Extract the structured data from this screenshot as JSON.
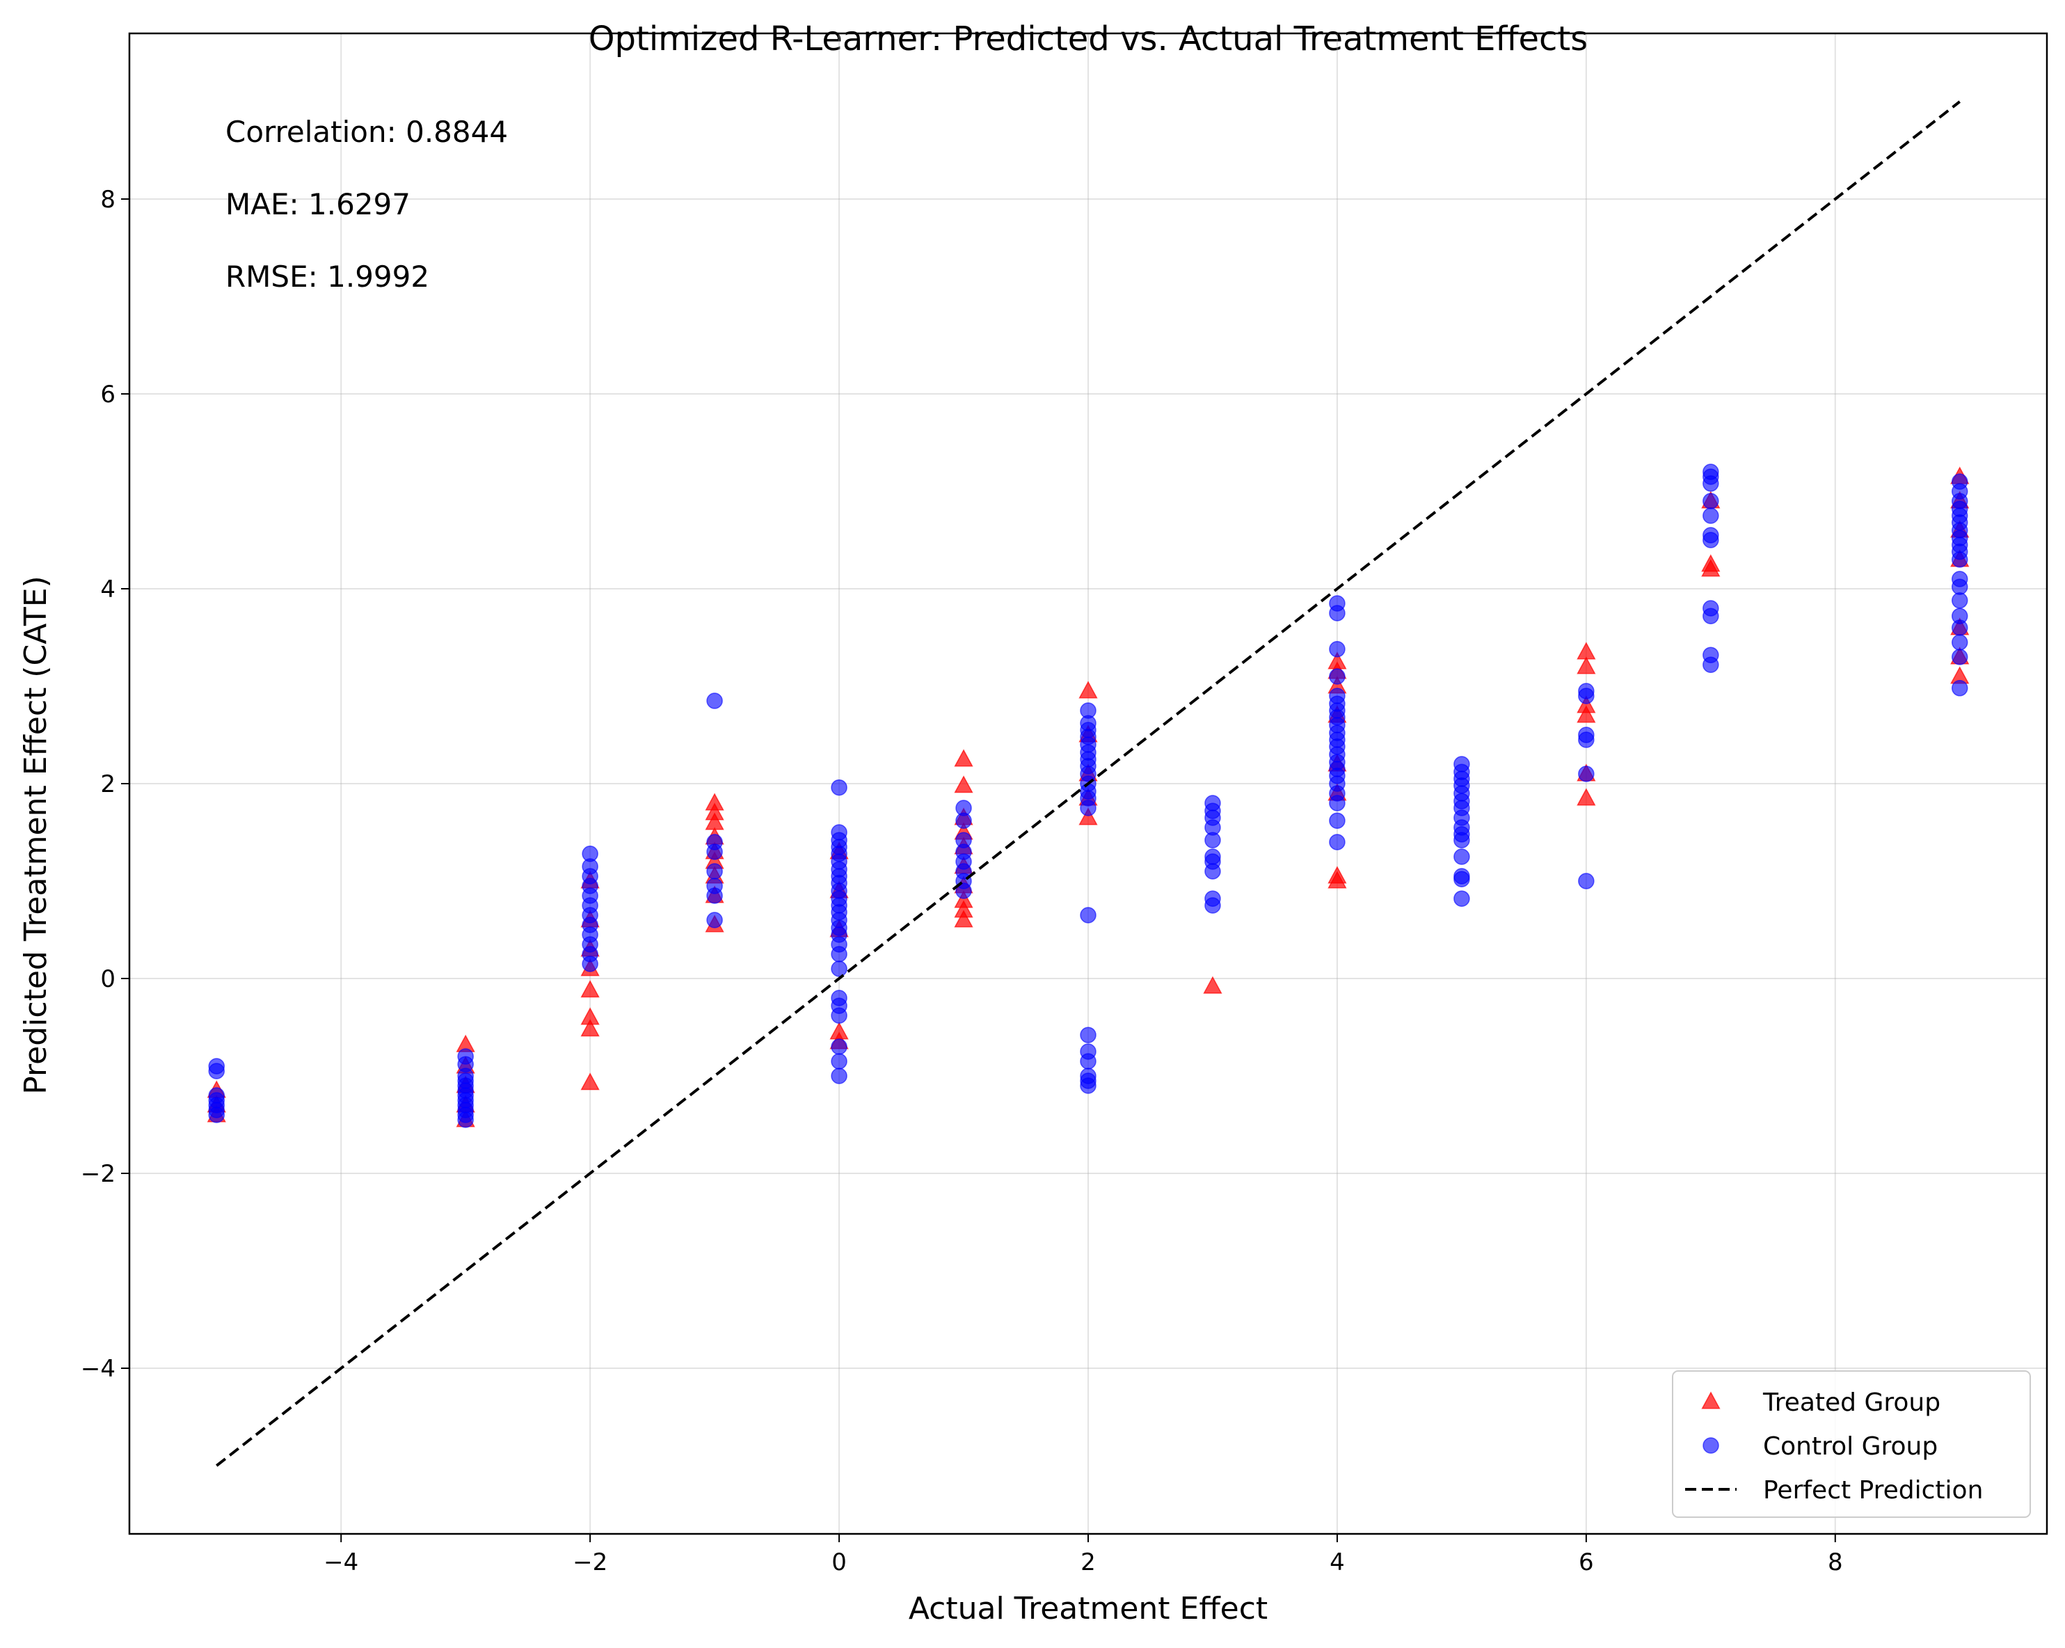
{
  "chart_data": {
    "type": "scatter",
    "title": "Optimized R-Learner: Predicted vs. Actual Treatment Effects",
    "xlabel": "Actual Treatment Effect",
    "ylabel": "Predicted Treatment Effect (CATE)",
    "xlim": [
      -5.7,
      9.7
    ],
    "ylim": [
      -5.7,
      9.7
    ],
    "xticks": [
      -4,
      -2,
      0,
      2,
      4,
      6,
      8
    ],
    "yticks": [
      -4,
      -2,
      0,
      2,
      4,
      6,
      8
    ],
    "xtick_labels": [
      "−4",
      "−2",
      "0",
      "2",
      "4",
      "6",
      "8"
    ],
    "ytick_labels": [
      "−4",
      "−2",
      "0",
      "2",
      "4",
      "6",
      "8"
    ],
    "grid": true,
    "legend_position": "lower-right",
    "annotations": [
      "Correlation: 0.8844",
      "MAE: 1.6297",
      "RMSE: 1.9992"
    ],
    "series": [
      {
        "name": "Treated Group",
        "marker": "triangle",
        "color": "#ff0000",
        "points": [
          [
            -5,
            -1.15
          ],
          [
            -5,
            -1.3
          ],
          [
            -5,
            -1.4
          ],
          [
            -3,
            -0.68
          ],
          [
            -3,
            -0.9
          ],
          [
            -3,
            -1.1
          ],
          [
            -3,
            -1.3
          ],
          [
            -3,
            -1.45
          ],
          [
            -2,
            1.0
          ],
          [
            -2,
            0.6
          ],
          [
            -2,
            0.3
          ],
          [
            -2,
            0.1
          ],
          [
            -2,
            -0.12
          ],
          [
            -2,
            -0.4
          ],
          [
            -2,
            -0.52
          ],
          [
            -2,
            -1.07
          ],
          [
            -1,
            1.8
          ],
          [
            -1,
            1.7
          ],
          [
            -1,
            1.6
          ],
          [
            -1,
            1.45
          ],
          [
            -1,
            1.3
          ],
          [
            -1,
            1.2
          ],
          [
            -1,
            1.05
          ],
          [
            -1,
            0.85
          ],
          [
            -1,
            0.55
          ],
          [
            0,
            1.3
          ],
          [
            0,
            0.9
          ],
          [
            0,
            0.5
          ],
          [
            0,
            -0.55
          ],
          [
            0,
            -0.65
          ],
          [
            1,
            2.25
          ],
          [
            1,
            1.98
          ],
          [
            1,
            1.65
          ],
          [
            1,
            1.5
          ],
          [
            1,
            1.35
          ],
          [
            1,
            1.15
          ],
          [
            1,
            0.95
          ],
          [
            1,
            0.8
          ],
          [
            1,
            0.7
          ],
          [
            1,
            0.6
          ],
          [
            2,
            2.95
          ],
          [
            2,
            2.5
          ],
          [
            2,
            2.1
          ],
          [
            2,
            1.85
          ],
          [
            2,
            1.65
          ],
          [
            3,
            -0.08
          ],
          [
            4,
            3.25
          ],
          [
            4,
            3.15
          ],
          [
            4,
            3.0
          ],
          [
            4,
            2.7
          ],
          [
            4,
            2.2
          ],
          [
            4,
            1.9
          ],
          [
            4,
            1.05
          ],
          [
            4,
            1.0
          ],
          [
            6,
            3.35
          ],
          [
            6,
            3.2
          ],
          [
            6,
            2.8
          ],
          [
            6,
            2.7
          ],
          [
            6,
            2.1
          ],
          [
            6,
            1.85
          ],
          [
            7,
            4.9
          ],
          [
            7,
            4.25
          ],
          [
            7,
            4.2
          ],
          [
            9,
            5.15
          ],
          [
            9,
            4.9
          ],
          [
            9,
            4.6
          ],
          [
            9,
            4.3
          ],
          [
            9,
            3.6
          ],
          [
            9,
            3.3
          ],
          [
            9,
            3.1
          ]
        ]
      },
      {
        "name": "Control Group",
        "marker": "circle",
        "color": "#0000ff",
        "points": [
          [
            -5,
            -0.9
          ],
          [
            -5,
            -0.95
          ],
          [
            -5,
            -1.2
          ],
          [
            -5,
            -1.25
          ],
          [
            -5,
            -1.3
          ],
          [
            -5,
            -1.35
          ],
          [
            -5,
            -1.4
          ],
          [
            -3,
            -0.8
          ],
          [
            -3,
            -0.88
          ],
          [
            -3,
            -1.0
          ],
          [
            -3,
            -1.05
          ],
          [
            -3,
            -1.1
          ],
          [
            -3,
            -1.15
          ],
          [
            -3,
            -1.2
          ],
          [
            -3,
            -1.25
          ],
          [
            -3,
            -1.3
          ],
          [
            -3,
            -1.35
          ],
          [
            -3,
            -1.4
          ],
          [
            -3,
            -1.45
          ],
          [
            -2,
            1.28
          ],
          [
            -2,
            1.15
          ],
          [
            -2,
            1.05
          ],
          [
            -2,
            0.95
          ],
          [
            -2,
            0.85
          ],
          [
            -2,
            0.75
          ],
          [
            -2,
            0.65
          ],
          [
            -2,
            0.55
          ],
          [
            -2,
            0.45
          ],
          [
            -2,
            0.35
          ],
          [
            -2,
            0.25
          ],
          [
            -2,
            0.15
          ],
          [
            -1,
            2.85
          ],
          [
            -1,
            1.4
          ],
          [
            -1,
            1.3
          ],
          [
            -1,
            1.1
          ],
          [
            -1,
            0.95
          ],
          [
            -1,
            0.85
          ],
          [
            -1,
            0.6
          ],
          [
            0,
            1.96
          ],
          [
            0,
            1.5
          ],
          [
            0,
            1.42
          ],
          [
            0,
            1.35
          ],
          [
            0,
            1.28
          ],
          [
            0,
            1.2
          ],
          [
            0,
            1.12
          ],
          [
            0,
            1.05
          ],
          [
            0,
            0.98
          ],
          [
            0,
            0.9
          ],
          [
            0,
            0.82
          ],
          [
            0,
            0.75
          ],
          [
            0,
            0.68
          ],
          [
            0,
            0.6
          ],
          [
            0,
            0.52
          ],
          [
            0,
            0.45
          ],
          [
            0,
            0.35
          ],
          [
            0,
            0.25
          ],
          [
            0,
            0.1
          ],
          [
            0,
            -0.2
          ],
          [
            0,
            -0.28
          ],
          [
            0,
            -0.38
          ],
          [
            0,
            -0.7
          ],
          [
            0,
            -0.85
          ],
          [
            0,
            -1.0
          ],
          [
            1,
            1.75
          ],
          [
            1,
            1.62
          ],
          [
            1,
            1.42
          ],
          [
            1,
            1.3
          ],
          [
            1,
            1.2
          ],
          [
            1,
            1.1
          ],
          [
            1,
            1.0
          ],
          [
            1,
            0.9
          ],
          [
            2,
            2.75
          ],
          [
            2,
            2.62
          ],
          [
            2,
            2.55
          ],
          [
            2,
            2.48
          ],
          [
            2,
            2.4
          ],
          [
            2,
            2.32
          ],
          [
            2,
            2.25
          ],
          [
            2,
            2.18
          ],
          [
            2,
            2.1
          ],
          [
            2,
            2.0
          ],
          [
            2,
            1.92
          ],
          [
            2,
            1.85
          ],
          [
            2,
            1.75
          ],
          [
            2,
            0.65
          ],
          [
            2,
            -0.58
          ],
          [
            2,
            -0.75
          ],
          [
            2,
            -0.85
          ],
          [
            2,
            -1.0
          ],
          [
            2,
            -1.05
          ],
          [
            2,
            -1.1
          ],
          [
            3,
            1.8
          ],
          [
            3,
            1.72
          ],
          [
            3,
            1.65
          ],
          [
            3,
            1.55
          ],
          [
            3,
            1.42
          ],
          [
            3,
            1.25
          ],
          [
            3,
            1.2
          ],
          [
            3,
            1.1
          ],
          [
            3,
            0.82
          ],
          [
            3,
            0.75
          ],
          [
            4,
            3.85
          ],
          [
            4,
            3.75
          ],
          [
            4,
            3.38
          ],
          [
            4,
            3.1
          ],
          [
            4,
            2.9
          ],
          [
            4,
            2.82
          ],
          [
            4,
            2.75
          ],
          [
            4,
            2.68
          ],
          [
            4,
            2.6
          ],
          [
            4,
            2.52
          ],
          [
            4,
            2.45
          ],
          [
            4,
            2.38
          ],
          [
            4,
            2.3
          ],
          [
            4,
            2.22
          ],
          [
            4,
            2.15
          ],
          [
            4,
            2.08
          ],
          [
            4,
            2.0
          ],
          [
            4,
            1.9
          ],
          [
            4,
            1.8
          ],
          [
            4,
            1.62
          ],
          [
            4,
            1.4
          ],
          [
            5,
            2.2
          ],
          [
            5,
            2.12
          ],
          [
            5,
            2.05
          ],
          [
            5,
            1.98
          ],
          [
            5,
            1.9
          ],
          [
            5,
            1.82
          ],
          [
            5,
            1.75
          ],
          [
            5,
            1.65
          ],
          [
            5,
            1.55
          ],
          [
            5,
            1.48
          ],
          [
            5,
            1.42
          ],
          [
            5,
            1.25
          ],
          [
            5,
            1.05
          ],
          [
            5,
            1.02
          ],
          [
            5,
            0.82
          ],
          [
            6,
            2.95
          ],
          [
            6,
            2.9
          ],
          [
            6,
            2.5
          ],
          [
            6,
            2.45
          ],
          [
            6,
            2.1
          ],
          [
            6,
            1.0
          ],
          [
            7,
            5.2
          ],
          [
            7,
            5.15
          ],
          [
            7,
            5.08
          ],
          [
            7,
            4.9
          ],
          [
            7,
            4.75
          ],
          [
            7,
            4.55
          ],
          [
            7,
            4.5
          ],
          [
            7,
            3.8
          ],
          [
            7,
            3.72
          ],
          [
            7,
            3.32
          ],
          [
            7,
            3.22
          ],
          [
            9,
            5.1
          ],
          [
            9,
            5.0
          ],
          [
            9,
            4.9
          ],
          [
            9,
            4.82
          ],
          [
            9,
            4.75
          ],
          [
            9,
            4.68
          ],
          [
            9,
            4.6
          ],
          [
            9,
            4.52
          ],
          [
            9,
            4.45
          ],
          [
            9,
            4.38
          ],
          [
            9,
            4.3
          ],
          [
            9,
            4.1
          ],
          [
            9,
            4.02
          ],
          [
            9,
            3.88
          ],
          [
            9,
            3.72
          ],
          [
            9,
            3.6
          ],
          [
            9,
            3.45
          ],
          [
            9,
            3.3
          ],
          [
            9,
            2.98
          ]
        ]
      },
      {
        "name": "Perfect Prediction",
        "marker": "dashed-line",
        "color": "#000000",
        "points": [
          [
            -5,
            -5
          ],
          [
            9,
            9
          ]
        ]
      }
    ]
  }
}
